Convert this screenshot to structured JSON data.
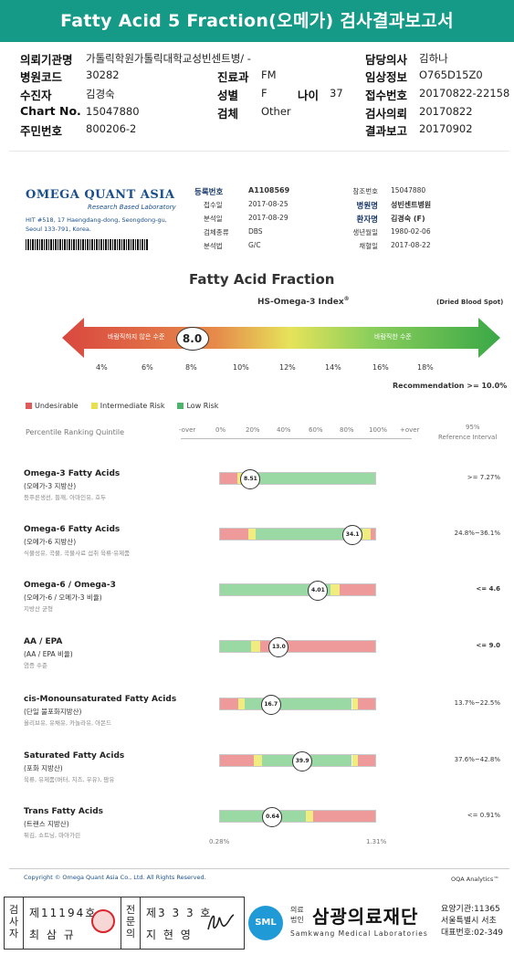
{
  "title": "Fatty Acid 5 Fraction(오메가) 검사결과보고서",
  "info": {
    "institution_label": "의뢰기관명",
    "institution": "가톨릭학원가톨릭대학교성빈센트병/ -",
    "doctor_label": "담당의사",
    "doctor": "김하나",
    "hospital_code_label": "병원코드",
    "hospital_code": "30282",
    "dept_label": "진료과",
    "dept": "FM",
    "clinical_label": "임상정보",
    "clinical": "O765D15Z0",
    "patient_label": "수진자",
    "patient": "김경숙",
    "sex_label": "성별",
    "sex": "F",
    "age_label": "나이",
    "age": "37",
    "receipt_label": "접수번호",
    "receipt": "20170822-22158",
    "chart_label": "Chart No.",
    "chart": "15047880",
    "specimen_label": "검체",
    "specimen": "Other",
    "request_label": "검사의뢰",
    "request": "20170822",
    "resident_label": "주민번호",
    "resident": "800206-2",
    "report_label": "결과보고",
    "report": "20170902"
  },
  "scan": {
    "logo": "OMEGA QUANT ASIA",
    "logo_sub": "Research Based Laboratory",
    "address1": "HIT #518, 17 Haengdang-dong, Seongdong-gu,",
    "address2": "Seoul 133-791, Korea.",
    "meta_left": [
      {
        "label": "등록번호",
        "value": "A1108569"
      },
      {
        "label": "접수일",
        "value": "2017-08-25"
      },
      {
        "label": "분석일",
        "value": "2017-08-29"
      },
      {
        "label": "검체종류",
        "value": "DBS"
      },
      {
        "label": "분석법",
        "value": "G/C"
      }
    ],
    "meta_right": [
      {
        "label": "참조번호",
        "value": "15047880"
      },
      {
        "label": "병원명",
        "value": "성빈센트병원"
      },
      {
        "label": "환자명",
        "value": "김경숙 (F)"
      },
      {
        "label": "생년월일",
        "value": "1980-02-06"
      },
      {
        "label": "채혈일",
        "value": "2017-08-22"
      }
    ],
    "fraction_title": "Fatty Acid Fraction",
    "index_title": "HS-Omega-3 Index",
    "index_sup": "®",
    "specimen_note": "(Dried Blood Spot)",
    "undesirable_text": "바람직하지 않은 수준",
    "desirable_text": "바람직한 수준",
    "index_value": "8.0",
    "index_value_num": 8.0,
    "index_ticks": [
      "4%",
      "6%",
      "8%",
      "10%",
      "12%",
      "14%",
      "16%",
      "18%"
    ],
    "recommendation": "Recommendation >= 10.0%",
    "legend": [
      {
        "label": "Undesirable",
        "color": "#e05a5a"
      },
      {
        "label": "Intermediate Risk",
        "color": "#e8e04a"
      },
      {
        "label": "Low Risk",
        "color": "#4cb56a"
      }
    ],
    "percentile_label": "Percentile Ranking Quintile",
    "percentile_ticks": [
      "-over",
      "0%",
      "20%",
      "40%",
      "60%",
      "80%",
      "100%",
      "+over"
    ],
    "ref_header1": "95%",
    "ref_header2": "Reference Interval",
    "footer_copyright": "Copyright © Omega Quant Asia Co., Ltd.  All Rights Reserved.",
    "footer_brand": "OQA Analytics™"
  },
  "acids": [
    {
      "title": "Omega-3 Fatty Acids",
      "sub": "(오메가-3 지방산)",
      "food": "등푸른생선, 들깨, 아마인유, 호두",
      "value": "8.51",
      "position": 0.2,
      "reference": ">= 7.27%",
      "ref_bold": false,
      "segments": [
        {
          "from": 0,
          "to": 0.11,
          "color": "#ee9a9a"
        },
        {
          "from": 0.11,
          "to": 0.15,
          "color": "#f0ec80"
        },
        {
          "from": 0.15,
          "to": 1,
          "color": "#9ad9a4"
        }
      ]
    },
    {
      "title": "Omega-6 Fatty Acids",
      "sub": "(오메가-6 지방산)",
      "food": "식물성유, 곡물, 곡물사료 섭취 육류·유제품",
      "value": "34.1",
      "position": 0.85,
      "reference": "24.8%~36.1%",
      "ref_bold": false,
      "segments": [
        {
          "from": 0,
          "to": 0.18,
          "color": "#ee9a9a"
        },
        {
          "from": 0.18,
          "to": 0.23,
          "color": "#f0ec80"
        },
        {
          "from": 0.23,
          "to": 0.92,
          "color": "#9ad9a4"
        },
        {
          "from": 0.92,
          "to": 0.97,
          "color": "#f0ec80"
        },
        {
          "from": 0.97,
          "to": 1,
          "color": "#ee9a9a"
        }
      ]
    },
    {
      "title": "Omega-6 / Omega-3",
      "sub": "(오메가-6 / 오메가-3 비율)",
      "food": "지방산 균형",
      "value": "4.01",
      "position": 0.63,
      "reference": "<= 4.6",
      "ref_bold": true,
      "segments": [
        {
          "from": 0,
          "to": 0.71,
          "color": "#9ad9a4"
        },
        {
          "from": 0.71,
          "to": 0.77,
          "color": "#f0ec80"
        },
        {
          "from": 0.77,
          "to": 1,
          "color": "#ee9a9a"
        }
      ]
    },
    {
      "title": "AA / EPA",
      "sub": "(AA / EPA 비율)",
      "food": "염증 수준",
      "value": "13.0",
      "position": 0.38,
      "reference": "<= 9.0",
      "ref_bold": true,
      "segments": [
        {
          "from": 0,
          "to": 0.2,
          "color": "#9ad9a4"
        },
        {
          "from": 0.2,
          "to": 0.26,
          "color": "#f0ec80"
        },
        {
          "from": 0.26,
          "to": 1,
          "color": "#ee9a9a"
        }
      ]
    },
    {
      "title": "cis-Monounsaturated Fatty Acids",
      "sub": "(단일 불포화지방산)",
      "food": "올리브유, 유채유, 카놀라유, 아몬드",
      "value": "16.7",
      "position": 0.33,
      "reference": "13.7%~22.5%",
      "ref_bold": false,
      "segments": [
        {
          "from": 0,
          "to": 0.12,
          "color": "#ee9a9a"
        },
        {
          "from": 0.12,
          "to": 0.16,
          "color": "#f0ec80"
        },
        {
          "from": 0.16,
          "to": 0.85,
          "color": "#9ad9a4"
        },
        {
          "from": 0.85,
          "to": 0.89,
          "color": "#f0ec80"
        },
        {
          "from": 0.89,
          "to": 1,
          "color": "#ee9a9a"
        }
      ]
    },
    {
      "title": "Saturated Fatty Acids",
      "sub": "(포화 지방산)",
      "food": "육류, 유제품(버터, 치즈, 우유), 팜유",
      "value": "39.9",
      "position": 0.53,
      "reference": "37.6%~42.8%",
      "ref_bold": false,
      "segments": [
        {
          "from": 0,
          "to": 0.22,
          "color": "#ee9a9a"
        },
        {
          "from": 0.22,
          "to": 0.27,
          "color": "#f0ec80"
        },
        {
          "from": 0.27,
          "to": 0.85,
          "color": "#9ad9a4"
        },
        {
          "from": 0.85,
          "to": 0.89,
          "color": "#f0ec80"
        },
        {
          "from": 0.89,
          "to": 1,
          "color": "#ee9a9a"
        }
      ]
    },
    {
      "title": "Trans Fatty Acids",
      "sub": "(트랜스 지방산)",
      "food": "튀김, 쇼트닝, 마아가린",
      "value": "0.64",
      "position": 0.34,
      "reference": "<= 0.91%",
      "ref_bold": false,
      "segments": [
        {
          "from": 0,
          "to": 0.55,
          "color": "#9ad9a4"
        },
        {
          "from": 0.55,
          "to": 0.6,
          "color": "#f0ec80"
        },
        {
          "from": 0.6,
          "to": 1,
          "color": "#ee9a9a"
        }
      ]
    }
  ],
  "trans_range_low": "0.28%",
  "trans_range_high": "1.31%",
  "signoff": {
    "examiner_label": "검사자",
    "examiner_no": "제11194호",
    "examiner_name": "최 삼 규",
    "specialist_label": "전문의",
    "specialist_no": "제3 3 3 호",
    "specialist_name": "지 현 영",
    "org_small1": "의료",
    "org_small2": "법인",
    "org_name": "삼광의료재단",
    "org_eng": "Samkwang Medical Laboratories",
    "logo_text": "SML",
    "contact1": "요양기관:11365",
    "contact2": "서울특별시 서초",
    "contact3": "대표번호:02-349"
  }
}
